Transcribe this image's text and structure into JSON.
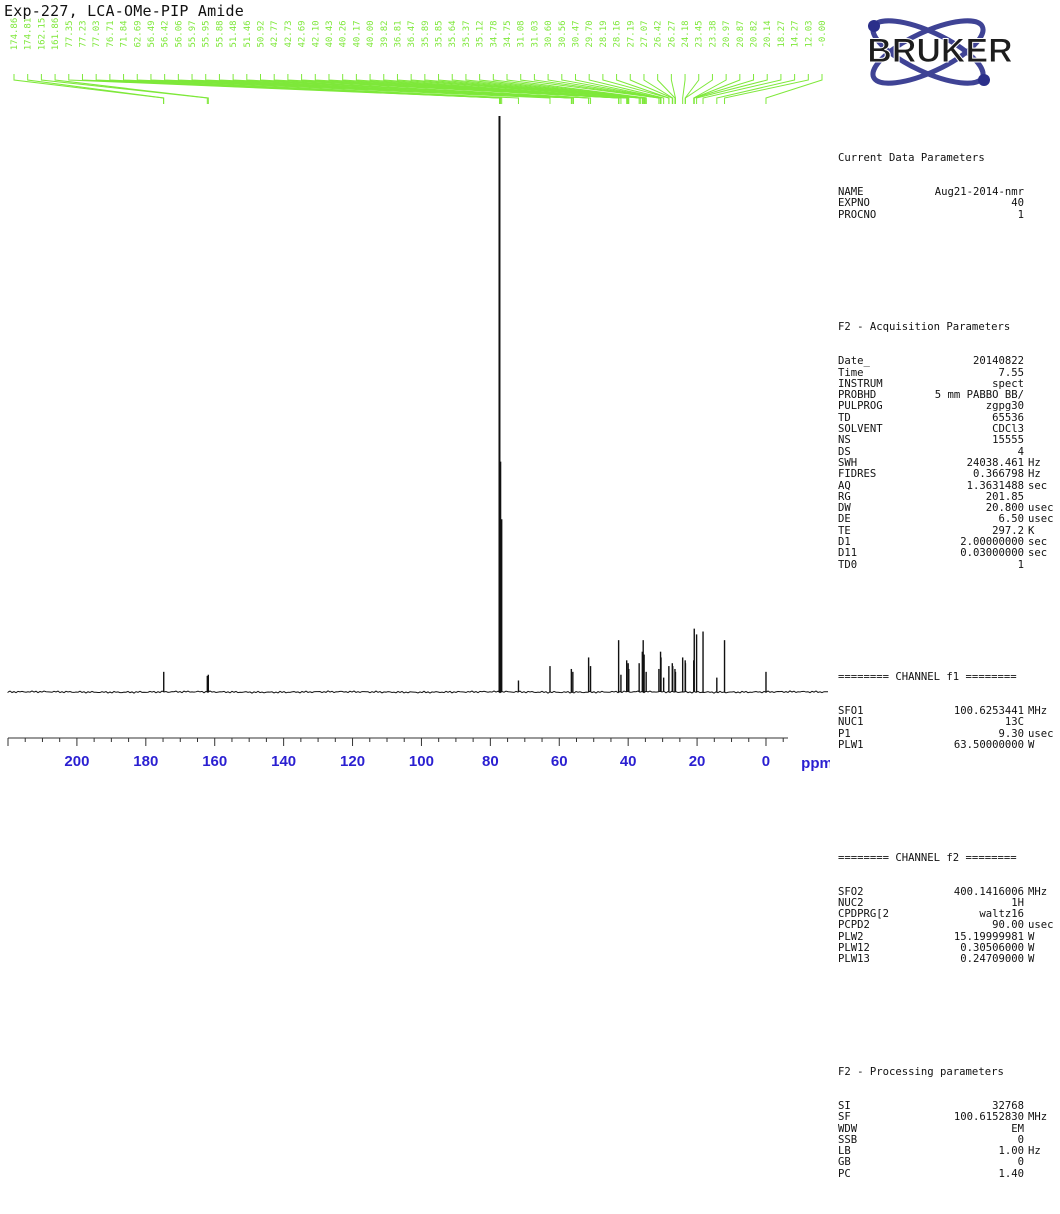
{
  "title": "Exp-227, LCA-OMe-PIP Amide",
  "logo_text": "BRUKER",
  "colors": {
    "peak_labels": "#7ee83a",
    "spectrum": "#111111",
    "axis_labels": "#2a1fd1",
    "logo": "#2b2f8a"
  },
  "params": {
    "current": {
      "title": "Current Data Parameters",
      "rows": [
        {
          "k": "NAME",
          "v": "Aug21-2014-nmr",
          "u": ""
        },
        {
          "k": "EXPNO",
          "v": "40",
          "u": ""
        },
        {
          "k": "PROCNO",
          "v": "1",
          "u": ""
        }
      ]
    },
    "acq": {
      "title": "F2 - Acquisition Parameters",
      "rows": [
        {
          "k": "Date_",
          "v": "20140822",
          "u": ""
        },
        {
          "k": "Time",
          "v": "7.55",
          "u": ""
        },
        {
          "k": "INSTRUM",
          "v": "spect",
          "u": ""
        },
        {
          "k": "PROBHD",
          "v": "5 mm PABBO BB/",
          "u": ""
        },
        {
          "k": "PULPROG",
          "v": "zgpg30",
          "u": ""
        },
        {
          "k": "TD",
          "v": "65536",
          "u": ""
        },
        {
          "k": "SOLVENT",
          "v": "CDCl3",
          "u": ""
        },
        {
          "k": "NS",
          "v": "15555",
          "u": ""
        },
        {
          "k": "DS",
          "v": "4",
          "u": ""
        },
        {
          "k": "SWH",
          "v": "24038.461",
          "u": "Hz"
        },
        {
          "k": "FIDRES",
          "v": "0.366798",
          "u": "Hz"
        },
        {
          "k": "AQ",
          "v": "1.3631488",
          "u": "sec"
        },
        {
          "k": "RG",
          "v": "201.85",
          "u": ""
        },
        {
          "k": "DW",
          "v": "20.800",
          "u": "usec"
        },
        {
          "k": "DE",
          "v": "6.50",
          "u": "usec"
        },
        {
          "k": "TE",
          "v": "297.2",
          "u": "K"
        },
        {
          "k": "D1",
          "v": "2.00000000",
          "u": "sec"
        },
        {
          "k": "D11",
          "v": "0.03000000",
          "u": "sec"
        },
        {
          "k": "TD0",
          "v": "1",
          "u": ""
        }
      ]
    },
    "ch1": {
      "title": "======== CHANNEL f1 ========",
      "rows": [
        {
          "k": "SFO1",
          "v": "100.6253441",
          "u": "MHz"
        },
        {
          "k": "NUC1",
          "v": "13C",
          "u": ""
        },
        {
          "k": "P1",
          "v": "9.30",
          "u": "usec"
        },
        {
          "k": "PLW1",
          "v": "63.50000000",
          "u": "W"
        }
      ]
    },
    "ch2": {
      "title": "======== CHANNEL f2 ========",
      "rows": [
        {
          "k": "SFO2",
          "v": "400.1416006",
          "u": "MHz"
        },
        {
          "k": "NUC2",
          "v": "1H",
          "u": ""
        },
        {
          "k": "CPDPRG[2",
          "v": "waltz16",
          "u": ""
        },
        {
          "k": "PCPD2",
          "v": "90.00",
          "u": "usec"
        },
        {
          "k": "PLW2",
          "v": "15.19999981",
          "u": "W"
        },
        {
          "k": "PLW12",
          "v": "0.30506000",
          "u": "W"
        },
        {
          "k": "PLW13",
          "v": "0.24709000",
          "u": "W"
        }
      ]
    },
    "proc": {
      "title": "F2 - Processing parameters",
      "rows": [
        {
          "k": "SI",
          "v": "32768",
          "u": ""
        },
        {
          "k": "SF",
          "v": "100.6152830",
          "u": "MHz"
        },
        {
          "k": "WDW",
          "v": "EM",
          "u": ""
        },
        {
          "k": "SSB",
          "v": "0",
          "u": ""
        },
        {
          "k": "LB",
          "v": "1.00",
          "u": "Hz"
        },
        {
          "k": "GB",
          "v": "0",
          "u": ""
        },
        {
          "k": "PC",
          "v": "1.40",
          "u": ""
        }
      ]
    }
  },
  "chart_data": {
    "type": "line",
    "title": "Exp-227, LCA-OMe-PIP Amide",
    "xlabel": "ppm",
    "xlim": [
      220,
      -18
    ],
    "x_reversed": true,
    "ylim": [
      0,
      100
    ],
    "x_ticks": [
      200,
      180,
      160,
      140,
      120,
      100,
      80,
      60,
      40,
      20,
      0
    ],
    "peak_labels": [
      "174.86",
      "174.81",
      "162.15",
      "161.86",
      "77.35",
      "77.23",
      "77.03",
      "76.71",
      "71.84",
      "62.69",
      "56.49",
      "56.42",
      "56.06",
      "55.97",
      "55.95",
      "55.88",
      "51.48",
      "51.46",
      "50.92",
      "42.77",
      "42.73",
      "42.69",
      "42.10",
      "40.43",
      "40.26",
      "40.17",
      "40.00",
      "39.82",
      "36.81",
      "36.47",
      "35.89",
      "35.85",
      "35.64",
      "35.37",
      "35.12",
      "34.78",
      "34.75",
      "31.08",
      "31.03",
      "30.60",
      "30.56",
      "30.47",
      "29.70",
      "28.19",
      "28.16",
      "27.19",
      "27.07",
      "26.42",
      "26.27",
      "24.18",
      "23.45",
      "23.38",
      "20.97",
      "20.87",
      "20.82",
      "20.14",
      "18.27",
      "14.27",
      "12.03",
      "-0.00"
    ],
    "peaks": [
      {
        "x": 174.8,
        "y": 3.5
      },
      {
        "x": 162.15,
        "y": 2.8
      },
      {
        "x": 161.86,
        "y": 3.0
      },
      {
        "x": 77.35,
        "y": 100
      },
      {
        "x": 77.03,
        "y": 40
      },
      {
        "x": 76.71,
        "y": 30
      },
      {
        "x": 71.84,
        "y": 2.0
      },
      {
        "x": 62.69,
        "y": 4.5
      },
      {
        "x": 56.49,
        "y": 4.0
      },
      {
        "x": 56.06,
        "y": 3.5
      },
      {
        "x": 51.48,
        "y": 6.0
      },
      {
        "x": 50.92,
        "y": 4.5
      },
      {
        "x": 42.77,
        "y": 9.0
      },
      {
        "x": 42.1,
        "y": 3.0
      },
      {
        "x": 40.43,
        "y": 5.5
      },
      {
        "x": 40.0,
        "y": 5.0
      },
      {
        "x": 39.82,
        "y": 4.0
      },
      {
        "x": 36.81,
        "y": 5.0
      },
      {
        "x": 35.89,
        "y": 7.0
      },
      {
        "x": 35.64,
        "y": 9.0
      },
      {
        "x": 35.37,
        "y": 6.5
      },
      {
        "x": 34.78,
        "y": 3.5
      },
      {
        "x": 31.08,
        "y": 4.0
      },
      {
        "x": 30.6,
        "y": 7.0
      },
      {
        "x": 30.47,
        "y": 6.0
      },
      {
        "x": 29.7,
        "y": 2.5
      },
      {
        "x": 28.19,
        "y": 4.5
      },
      {
        "x": 27.19,
        "y": 5.0
      },
      {
        "x": 27.07,
        "y": 4.5
      },
      {
        "x": 26.42,
        "y": 4.0
      },
      {
        "x": 26.27,
        "y": 3.5
      },
      {
        "x": 24.18,
        "y": 6.0
      },
      {
        "x": 23.45,
        "y": 5.5
      },
      {
        "x": 23.38,
        "y": 5.0
      },
      {
        "x": 20.97,
        "y": 5.5
      },
      {
        "x": 20.82,
        "y": 11.0
      },
      {
        "x": 20.14,
        "y": 10.0
      },
      {
        "x": 18.27,
        "y": 10.5
      },
      {
        "x": 14.27,
        "y": 2.5
      },
      {
        "x": 12.03,
        "y": 9.0
      },
      {
        "x": 0.0,
        "y": 3.5
      }
    ]
  }
}
